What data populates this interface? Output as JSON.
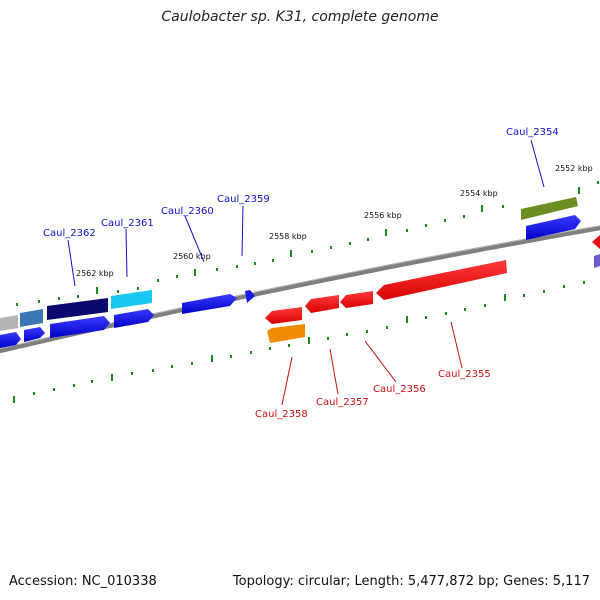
{
  "title": "Caulobacter sp. K31, complete genome",
  "footer": {
    "accession": "Accession: NC_010338",
    "stats": "Topology: circular; Length: 5,477,872 bp; Genes: 5,117"
  },
  "colors": {
    "backbone": "#7f7f7f",
    "tick": "#1b8a1b",
    "forward_label": "#1010c8",
    "reverse_label": "#c81010"
  },
  "ticks": [
    "2552 kbp",
    "2554 kbp",
    "2556 kbp",
    "2558 kbp",
    "2560 kbp",
    "2562 kbp"
  ],
  "gene_labels": {
    "forward": [
      "Caul_2354",
      "Caul_2359",
      "Caul_2360",
      "Caul_2361",
      "Caul_2362"
    ],
    "reverse": [
      "Caul_2355",
      "Caul_2356",
      "Caul_2357",
      "Caul_2358"
    ]
  }
}
